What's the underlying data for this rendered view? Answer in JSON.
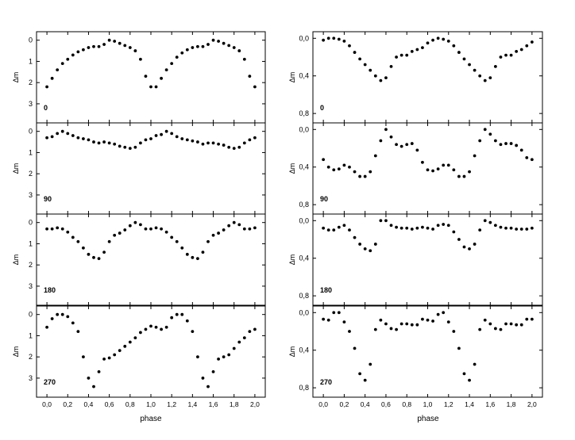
{
  "chart_data": [
    {
      "type": "scatter",
      "label": "0",
      "column": "left",
      "xlabel": "phase",
      "ylabel": "Δm",
      "xlim": [
        -0.1,
        2.1
      ],
      "ylim": [
        3.9,
        -0.4
      ],
      "yticks": [
        "0",
        "1",
        "2",
        "3"
      ],
      "ytick_values": [
        0,
        1,
        2,
        3
      ],
      "xticks": [],
      "x": [
        0.0,
        0.05,
        0.1,
        0.15,
        0.2,
        0.25,
        0.3,
        0.35,
        0.4,
        0.45,
        0.5,
        0.55,
        0.6,
        0.65,
        0.7,
        0.75,
        0.8,
        0.85,
        0.9,
        0.95,
        1.0,
        1.05,
        1.1,
        1.15,
        1.2,
        1.25,
        1.3,
        1.35,
        1.4,
        1.45,
        1.5,
        1.55,
        1.6,
        1.65,
        1.7,
        1.75,
        1.8,
        1.85,
        1.9,
        1.95,
        2.0
      ],
      "y": [
        2.2,
        1.8,
        1.4,
        1.1,
        0.9,
        0.7,
        0.55,
        0.45,
        0.35,
        0.3,
        0.3,
        0.2,
        0.0,
        0.05,
        0.15,
        0.25,
        0.35,
        0.5,
        0.9,
        1.7,
        2.2,
        2.2,
        1.8,
        1.4,
        1.1,
        0.8,
        0.6,
        0.45,
        0.35,
        0.3,
        0.3,
        0.2,
        0.0,
        0.05,
        0.15,
        0.25,
        0.35,
        0.5,
        0.9,
        1.7,
        2.2
      ]
    },
    {
      "type": "scatter",
      "label": "90",
      "column": "left",
      "xlabel": "phase",
      "ylabel": "Δm",
      "xlim": [
        -0.1,
        2.1
      ],
      "ylim": [
        3.9,
        -0.4
      ],
      "yticks": [
        "0",
        "1",
        "2",
        "3"
      ],
      "ytick_values": [
        0,
        1,
        2,
        3
      ],
      "xticks": [],
      "x": [
        0.0,
        0.05,
        0.1,
        0.15,
        0.2,
        0.25,
        0.3,
        0.35,
        0.4,
        0.45,
        0.5,
        0.55,
        0.6,
        0.65,
        0.7,
        0.75,
        0.8,
        0.85,
        0.9,
        0.95,
        1.0,
        1.05,
        1.1,
        1.15,
        1.2,
        1.25,
        1.3,
        1.35,
        1.4,
        1.45,
        1.5,
        1.55,
        1.6,
        1.65,
        1.7,
        1.75,
        1.8,
        1.85,
        1.9,
        1.95,
        2.0
      ],
      "y": [
        0.3,
        0.25,
        0.1,
        0.0,
        0.1,
        0.2,
        0.3,
        0.35,
        0.4,
        0.5,
        0.55,
        0.5,
        0.55,
        0.6,
        0.7,
        0.75,
        0.8,
        0.75,
        0.55,
        0.4,
        0.35,
        0.2,
        0.15,
        0.0,
        0.1,
        0.25,
        0.35,
        0.4,
        0.45,
        0.5,
        0.6,
        0.55,
        0.55,
        0.6,
        0.65,
        0.75,
        0.8,
        0.75,
        0.55,
        0.4,
        0.3
      ]
    },
    {
      "type": "scatter",
      "label": "180",
      "column": "left",
      "xlabel": "phase",
      "ylabel": "Δm",
      "xlim": [
        -0.1,
        2.1
      ],
      "ylim": [
        3.9,
        -0.4
      ],
      "yticks": [
        "0",
        "1",
        "2",
        "3"
      ],
      "ytick_values": [
        0,
        1,
        2,
        3
      ],
      "xticks": [],
      "x": [
        0.0,
        0.05,
        0.1,
        0.15,
        0.2,
        0.25,
        0.3,
        0.35,
        0.4,
        0.45,
        0.5,
        0.55,
        0.6,
        0.65,
        0.7,
        0.75,
        0.8,
        0.85,
        0.9,
        0.95,
        1.0,
        1.05,
        1.1,
        1.15,
        1.2,
        1.25,
        1.3,
        1.35,
        1.4,
        1.45,
        1.5,
        1.55,
        1.6,
        1.65,
        1.7,
        1.75,
        1.8,
        1.85,
        1.9,
        1.95,
        2.0
      ],
      "y": [
        0.3,
        0.3,
        0.25,
        0.3,
        0.45,
        0.7,
        0.9,
        1.2,
        1.5,
        1.65,
        1.7,
        1.4,
        0.9,
        0.6,
        0.5,
        0.35,
        0.15,
        0.0,
        0.1,
        0.3,
        0.3,
        0.25,
        0.3,
        0.45,
        0.7,
        0.9,
        1.2,
        1.5,
        1.65,
        1.7,
        1.4,
        0.9,
        0.6,
        0.5,
        0.35,
        0.15,
        0.0,
        0.1,
        0.3,
        0.3,
        0.25
      ]
    },
    {
      "type": "scatter",
      "label": "270",
      "column": "left",
      "xlabel": "phase",
      "ylabel": "Δm",
      "xlim": [
        -0.1,
        2.1
      ],
      "ylim": [
        3.9,
        -0.4
      ],
      "yticks": [
        "0",
        "1",
        "2",
        "3"
      ],
      "ytick_values": [
        0,
        1,
        2,
        3
      ],
      "xticks": [
        "0,0",
        "0,2",
        "0,4",
        "0,6",
        "0,8",
        "1,0",
        "1,2",
        "1,4",
        "1,6",
        "1,8",
        "2,0"
      ],
      "xtick_values": [
        0.0,
        0.2,
        0.4,
        0.6,
        0.8,
        1.0,
        1.2,
        1.4,
        1.6,
        1.8,
        2.0
      ],
      "x": [
        0.0,
        0.05,
        0.1,
        0.15,
        0.2,
        0.25,
        0.3,
        0.35,
        0.4,
        0.45,
        0.5,
        0.55,
        0.6,
        0.65,
        0.7,
        0.75,
        0.8,
        0.85,
        0.9,
        0.95,
        1.0,
        1.05,
        1.1,
        1.15,
        1.2,
        1.25,
        1.3,
        1.35,
        1.4,
        1.45,
        1.5,
        1.55,
        1.6,
        1.65,
        1.7,
        1.75,
        1.8,
        1.85,
        1.9,
        1.95,
        2.0
      ],
      "y": [
        0.6,
        0.2,
        0.0,
        0.0,
        0.1,
        0.4,
        0.8,
        2.0,
        3.0,
        3.4,
        2.7,
        2.1,
        2.05,
        1.9,
        1.7,
        1.5,
        1.3,
        1.1,
        0.85,
        0.7,
        0.55,
        0.6,
        0.7,
        0.6,
        0.15,
        0.0,
        0.0,
        0.3,
        0.8,
        2.0,
        3.0,
        3.4,
        2.7,
        2.1,
        2.0,
        1.9,
        1.6,
        1.3,
        1.1,
        0.8,
        0.7
      ]
    },
    {
      "type": "scatter",
      "label": "0",
      "column": "right",
      "xlabel": "phase",
      "ylabel": "Δm",
      "xlim": [
        -0.1,
        2.1
      ],
      "ylim": [
        0.9,
        -0.07
      ],
      "yticks": [
        "0,0",
        "0,4",
        "0,8"
      ],
      "ytick_values": [
        0.0,
        0.4,
        0.8
      ],
      "xticks": [],
      "x": [
        0.0,
        0.05,
        0.1,
        0.15,
        0.2,
        0.25,
        0.3,
        0.35,
        0.4,
        0.45,
        0.5,
        0.55,
        0.6,
        0.65,
        0.7,
        0.75,
        0.8,
        0.85,
        0.9,
        0.95,
        1.0,
        1.05,
        1.1,
        1.15,
        1.2,
        1.25,
        1.3,
        1.35,
        1.4,
        1.45,
        1.5,
        1.55,
        1.6,
        1.65,
        1.7,
        1.75,
        1.8,
        1.85,
        1.9,
        1.95,
        2.0
      ],
      "y": [
        0.02,
        0.0,
        0.0,
        0.01,
        0.03,
        0.08,
        0.15,
        0.22,
        0.28,
        0.34,
        0.4,
        0.45,
        0.42,
        0.3,
        0.2,
        0.18,
        0.18,
        0.14,
        0.12,
        0.1,
        0.05,
        0.02,
        0.0,
        0.01,
        0.03,
        0.08,
        0.15,
        0.22,
        0.28,
        0.34,
        0.4,
        0.45,
        0.42,
        0.3,
        0.2,
        0.18,
        0.18,
        0.14,
        0.12,
        0.08,
        0.04
      ]
    },
    {
      "type": "scatter",
      "label": "90",
      "column": "right",
      "xlabel": "phase",
      "ylabel": "Δm",
      "xlim": [
        -0.1,
        2.1
      ],
      "ylim": [
        0.9,
        -0.07
      ],
      "yticks": [
        "0,0",
        "0,4",
        "0,8"
      ],
      "ytick_values": [
        0.0,
        0.4,
        0.8
      ],
      "xticks": [],
      "x": [
        0.0,
        0.05,
        0.1,
        0.15,
        0.2,
        0.25,
        0.3,
        0.35,
        0.4,
        0.45,
        0.5,
        0.55,
        0.6,
        0.65,
        0.7,
        0.75,
        0.8,
        0.85,
        0.9,
        0.95,
        1.0,
        1.05,
        1.1,
        1.15,
        1.2,
        1.25,
        1.3,
        1.35,
        1.4,
        1.45,
        1.5,
        1.55,
        1.6,
        1.65,
        1.7,
        1.75,
        1.8,
        1.85,
        1.9,
        1.95,
        2.0
      ],
      "y": [
        0.32,
        0.4,
        0.43,
        0.42,
        0.38,
        0.4,
        0.45,
        0.5,
        0.5,
        0.45,
        0.28,
        0.12,
        0.0,
        0.08,
        0.16,
        0.18,
        0.16,
        0.15,
        0.22,
        0.35,
        0.43,
        0.44,
        0.42,
        0.38,
        0.38,
        0.43,
        0.5,
        0.5,
        0.45,
        0.28,
        0.12,
        0.0,
        0.05,
        0.12,
        0.16,
        0.15,
        0.15,
        0.17,
        0.22,
        0.3,
        0.32
      ]
    },
    {
      "type": "scatter",
      "label": "180",
      "column": "right",
      "xlabel": "phase",
      "ylabel": "Δm",
      "xlim": [
        -0.1,
        2.1
      ],
      "ylim": [
        0.9,
        -0.07
      ],
      "yticks": [
        "0,0",
        "0,4",
        "0,8"
      ],
      "ytick_values": [
        0.0,
        0.4,
        0.8
      ],
      "xticks": [],
      "x": [
        0.0,
        0.05,
        0.1,
        0.15,
        0.2,
        0.25,
        0.3,
        0.35,
        0.4,
        0.45,
        0.5,
        0.55,
        0.6,
        0.65,
        0.7,
        0.75,
        0.8,
        0.85,
        0.9,
        0.95,
        1.0,
        1.05,
        1.1,
        1.15,
        1.2,
        1.25,
        1.3,
        1.35,
        1.4,
        1.45,
        1.5,
        1.55,
        1.6,
        1.65,
        1.7,
        1.75,
        1.8,
        1.85,
        1.9,
        1.95,
        2.0
      ],
      "y": [
        0.08,
        0.1,
        0.1,
        0.07,
        0.05,
        0.1,
        0.18,
        0.25,
        0.3,
        0.32,
        0.25,
        0.0,
        0.0,
        0.05,
        0.07,
        0.08,
        0.08,
        0.09,
        0.08,
        0.07,
        0.08,
        0.09,
        0.05,
        0.04,
        0.05,
        0.12,
        0.2,
        0.28,
        0.3,
        0.25,
        0.1,
        0.0,
        0.02,
        0.05,
        0.07,
        0.08,
        0.08,
        0.09,
        0.09,
        0.09,
        0.08
      ]
    },
    {
      "type": "scatter",
      "label": "270",
      "column": "right",
      "xlabel": "phase",
      "ylabel": "Δm",
      "xlim": [
        -0.1,
        2.1
      ],
      "ylim": [
        0.9,
        -0.07
      ],
      "yticks": [
        "0,0",
        "0,4",
        "0,8"
      ],
      "ytick_values": [
        0.0,
        0.4,
        0.8
      ],
      "xticks": [
        "0,0",
        "0,2",
        "0,4",
        "0,6",
        "0,8",
        "1,0",
        "1,2",
        "1,4",
        "1,6",
        "1,8",
        "2,0"
      ],
      "xtick_values": [
        0.0,
        0.2,
        0.4,
        0.6,
        0.8,
        1.0,
        1.2,
        1.4,
        1.6,
        1.8,
        2.0
      ],
      "x": [
        0.0,
        0.05,
        0.1,
        0.15,
        0.2,
        0.25,
        0.3,
        0.35,
        0.4,
        0.45,
        0.5,
        0.55,
        0.6,
        0.65,
        0.7,
        0.75,
        0.8,
        0.85,
        0.9,
        0.95,
        1.0,
        1.05,
        1.1,
        1.15,
        1.2,
        1.25,
        1.3,
        1.35,
        1.4,
        1.45,
        1.5,
        1.55,
        1.6,
        1.65,
        1.7,
        1.75,
        1.8,
        1.85,
        1.9,
        1.95,
        2.0
      ],
      "y": [
        0.07,
        0.08,
        0.0,
        0.0,
        0.1,
        0.2,
        0.38,
        0.65,
        0.72,
        0.55,
        0.18,
        0.08,
        0.12,
        0.17,
        0.18,
        0.12,
        0.12,
        0.13,
        0.13,
        0.07,
        0.08,
        0.09,
        0.02,
        0.0,
        0.1,
        0.2,
        0.38,
        0.65,
        0.72,
        0.55,
        0.18,
        0.08,
        0.12,
        0.17,
        0.18,
        0.12,
        0.12,
        0.13,
        0.13,
        0.07,
        0.07
      ]
    }
  ]
}
